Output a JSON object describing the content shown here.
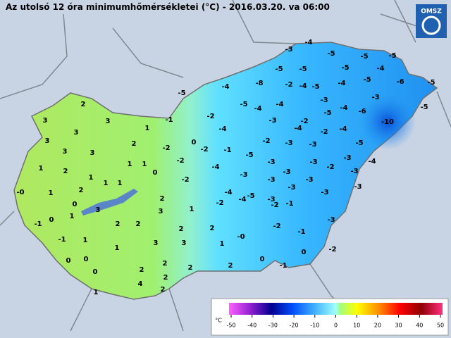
{
  "header": {
    "title": "Az utolsó 12 óra minimumhőmérsékletei (°C) - 2016.03.20. va 06:00",
    "logo": "OMSZ"
  },
  "stations": [
    "-4",
    "-3",
    "-5",
    "-5",
    "-5",
    "-4",
    "-5",
    "-5",
    "-5",
    "-2",
    "-4",
    "-5",
    "-4",
    "-8",
    "-5",
    "-6",
    "-5",
    "-4",
    "-5",
    "-5",
    "-4",
    "-4",
    "-3",
    "-3",
    "-3",
    "-5",
    "-4",
    "-6",
    "-5",
    "-10",
    "-2",
    "-1",
    "-2",
    "-4",
    "-4",
    "-2",
    "-4",
    "-2",
    "-3",
    "-3",
    "-5",
    "-2",
    "0",
    "-2",
    "-1",
    "-5",
    "-3",
    "-3",
    "-2",
    "-3",
    "-4",
    "-2",
    "-4",
    "-3",
    "-3",
    "-3",
    "-3",
    "-2",
    "-3",
    "-4",
    "-4",
    "-3",
    "-3",
    "-3",
    "-2",
    "-5",
    "-3",
    "-2",
    "-1",
    "-3",
    "-2",
    "-1",
    "-0",
    "-2",
    "0",
    "0",
    "-1",
    "2",
    "2",
    "3",
    "3",
    "3",
    "1",
    "3",
    "3",
    "3",
    "2",
    "1",
    "1",
    "0",
    "1",
    "2",
    "1",
    "1",
    "1",
    "-0",
    "1",
    "2",
    "2",
    "0",
    "3",
    "3",
    "1",
    "-1",
    "0",
    "1",
    "2",
    "2",
    "2",
    "2",
    "-1",
    "1",
    "3",
    "3",
    "1",
    "1",
    "0",
    "0",
    "2",
    "2",
    "0",
    "2",
    "2",
    "4",
    "1",
    "2"
  ],
  "legend": {
    "unit": "°C",
    "ticks": [
      -50,
      -40,
      -30,
      -20,
      -10,
      0,
      10,
      20,
      30,
      40,
      50
    ]
  }
}
